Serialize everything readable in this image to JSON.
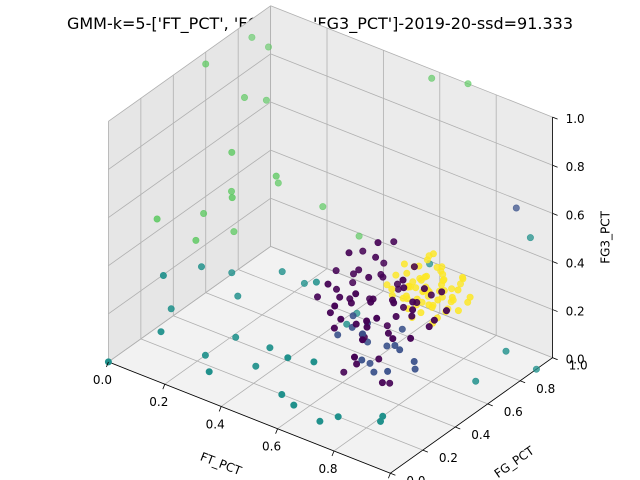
{
  "chart_data": {
    "type": "scatter",
    "projection": "3d",
    "title": "GMM-k=5-['FT_PCT', 'FG_PCT', 'FG3_PCT']-2019-20-ssd=91.333",
    "xlabel": "FT_PCT",
    "ylabel": "FG_PCT",
    "zlabel": "FG3_PCT",
    "xlim": [
      0,
      1
    ],
    "ylim": [
      0,
      1
    ],
    "zlim": [
      0,
      1
    ],
    "xticks": [
      "0.0",
      "0.2",
      "0.4",
      "0.6",
      "0.8",
      "1.0"
    ],
    "yticks": [
      "0.0",
      "0.2",
      "0.4",
      "0.6",
      "0.8",
      "1.0"
    ],
    "zticks": [
      "0.0",
      "0.2",
      "0.4",
      "0.6",
      "0.8",
      "1.0"
    ],
    "grid": true,
    "colors": {
      "cluster_0": "#440154",
      "cluster_1": "#3b528b",
      "cluster_2": "#21918c",
      "cluster_3": "#5ec962",
      "cluster_4": "#fde725"
    },
    "series": [
      {
        "color_key": "cluster_0",
        "points": [
          [
            0.62,
            0.42,
            0.33
          ],
          [
            0.68,
            0.45,
            0.36
          ],
          [
            0.72,
            0.5,
            0.35
          ],
          [
            0.58,
            0.48,
            0.3
          ],
          [
            0.65,
            0.55,
            0.4
          ],
          [
            0.75,
            0.47,
            0.31
          ],
          [
            0.7,
            0.4,
            0.38
          ],
          [
            0.66,
            0.38,
            0.28
          ],
          [
            0.6,
            0.5,
            0.42
          ],
          [
            0.78,
            0.52,
            0.36
          ],
          [
            0.74,
            0.44,
            0.25
          ],
          [
            0.55,
            0.45,
            0.34
          ],
          [
            0.8,
            0.48,
            0.33
          ],
          [
            0.64,
            0.58,
            0.37
          ],
          [
            0.71,
            0.36,
            0.3
          ],
          [
            0.69,
            0.52,
            0.22
          ],
          [
            0.57,
            0.52,
            0.38
          ],
          [
            0.77,
            0.42,
            0.4
          ],
          [
            0.63,
            0.47,
            0.18
          ],
          [
            0.73,
            0.55,
            0.3
          ],
          [
            0.59,
            0.4,
            0.35
          ],
          [
            0.67,
            0.44,
            0.45
          ],
          [
            0.82,
            0.45,
            0.38
          ],
          [
            0.61,
            0.55,
            0.28
          ],
          [
            0.76,
            0.5,
            0.42
          ],
          [
            0.5,
            0.42,
            0.3
          ],
          [
            0.68,
            0.6,
            0.35
          ],
          [
            0.72,
            0.34,
            0.34
          ],
          [
            0.65,
            0.4,
            0.1
          ],
          [
            0.7,
            0.3,
            0.2
          ],
          [
            0.85,
            0.5,
            0.3
          ],
          [
            0.56,
            0.38,
            0.4
          ],
          [
            0.62,
            0.62,
            0.4
          ],
          [
            0.79,
            0.38,
            0.28
          ],
          [
            0.66,
            0.5,
            0.5
          ],
          [
            0.74,
            0.6,
            0.45
          ],
          [
            0.6,
            0.35,
            0.25
          ],
          [
            0.52,
            0.5,
            0.38
          ],
          [
            0.88,
            0.48,
            0.35
          ],
          [
            0.7,
            0.45,
            0.12
          ],
          [
            0.64,
            0.32,
            0.32
          ],
          [
            0.76,
            0.58,
            0.32
          ],
          [
            0.58,
            0.56,
            0.46
          ],
          [
            0.81,
            0.54,
            0.42
          ],
          [
            0.67,
            0.36,
            0.42
          ],
          [
            0.73,
            0.42,
            0.05
          ],
          [
            0.69,
            0.56,
            0.55
          ],
          [
            0.62,
            0.5,
            0.15
          ],
          [
            0.78,
            0.46,
            0.48
          ],
          [
            0.55,
            0.55,
            0.32
          ],
          [
            0.9,
            0.52,
            0.38
          ],
          [
            0.6,
            0.44,
            0.52
          ],
          [
            0.75,
            0.35,
            0.36
          ],
          [
            0.66,
            0.64,
            0.3
          ],
          [
            0.71,
            0.5,
            0.0
          ],
          [
            0.63,
            0.3,
            0.38
          ],
          [
            0.83,
            0.42,
            0.28
          ],
          [
            0.57,
            0.46,
            0.0
          ],
          [
            0.8,
            0.6,
            0.36
          ],
          [
            0.68,
            0.48,
            0.58
          ],
          [
            0.74,
            0.28,
            0.3
          ],
          [
            0.58,
            0.36,
            0.3
          ],
          [
            0.86,
            0.56,
            0.42
          ]
        ]
      },
      {
        "color_key": "cluster_1",
        "points": [
          [
            0.6,
            0.46,
            0.2
          ],
          [
            0.7,
            0.5,
            0.15
          ],
          [
            0.66,
            0.42,
            0.22
          ],
          [
            0.74,
            0.48,
            0.18
          ],
          [
            0.62,
            0.52,
            0.12
          ],
          [
            0.78,
            0.44,
            0.2
          ],
          [
            0.68,
            0.38,
            0.14
          ],
          [
            0.56,
            0.44,
            0.16
          ],
          [
            0.72,
            0.56,
            0.2
          ],
          [
            0.64,
            0.5,
            0.05
          ],
          [
            0.8,
            0.5,
            0.1
          ],
          [
            0.66,
            0.45,
            0.25
          ],
          [
            0.76,
            0.4,
            0.12
          ],
          [
            0.9,
            0.95,
            0.6
          ],
          [
            0.7,
            0.42,
            0.08
          ],
          [
            0.58,
            0.5,
            0.22
          ],
          [
            0.82,
            0.46,
            0.16
          ]
        ]
      },
      {
        "color_key": "cluster_2",
        "points": [
          [
            0.0,
            0.0,
            0.0
          ],
          [
            0.05,
            0.3,
            0.1
          ],
          [
            0.1,
            0.4,
            0.25
          ],
          [
            0.15,
            0.5,
            0.2
          ],
          [
            0.08,
            0.2,
            0.3
          ],
          [
            0.2,
            0.45,
            0.15
          ],
          [
            0.3,
            0.55,
            0.25
          ],
          [
            0.25,
            0.35,
            0.05
          ],
          [
            0.35,
            0.6,
            0.2
          ],
          [
            0.45,
            0.5,
            0.3
          ],
          [
            0.5,
            0.2,
            0.0
          ],
          [
            0.4,
            0.3,
            0.1
          ],
          [
            0.6,
            0.1,
            0.05
          ],
          [
            0.7,
            0.2,
            0.0
          ],
          [
            0.8,
            0.3,
            0.0
          ],
          [
            0.85,
            0.2,
            0.05
          ],
          [
            0.9,
            0.7,
            0.0
          ],
          [
            0.95,
            0.8,
            0.1
          ],
          [
            1.0,
            0.9,
            0.0
          ],
          [
            0.75,
            0.0,
            0.1
          ],
          [
            0.55,
            0.15,
            0.2
          ],
          [
            0.3,
            0.1,
            0.05
          ],
          [
            0.2,
            0.25,
            0.0
          ],
          [
            0.1,
            0.15,
            0.1
          ],
          [
            0.45,
            0.75,
            0.05
          ],
          [
            0.65,
            0.85,
            0.3
          ],
          [
            0.95,
            0.95,
            0.5
          ],
          [
            0.35,
            0.3,
            0.0
          ],
          [
            0.5,
            0.6,
            0.1
          ],
          [
            0.7,
            0.05,
            0.3
          ]
        ]
      },
      {
        "color_key": "cluster_3",
        "points": [
          [
            0.05,
            0.9,
            0.9
          ],
          [
            0.02,
            0.85,
            0.95
          ],
          [
            0.0,
            0.6,
            0.95
          ],
          [
            0.08,
            0.7,
            0.8
          ],
          [
            0.1,
            0.8,
            0.75
          ],
          [
            0.15,
            0.5,
            0.7
          ],
          [
            0.12,
            0.55,
            0.5
          ],
          [
            0.2,
            0.7,
            0.5
          ],
          [
            0.05,
            0.5,
            0.4
          ],
          [
            0.1,
            0.6,
            0.3
          ],
          [
            0.08,
            0.4,
            0.35
          ],
          [
            0.25,
            0.6,
            0.6
          ],
          [
            0.3,
            0.8,
            0.4
          ],
          [
            0.4,
            0.85,
            0.3
          ],
          [
            0.6,
            0.95,
            1.0
          ],
          [
            0.7,
            1.0,
            1.0
          ],
          [
            0.0,
            0.3,
            0.45
          ],
          [
            0.18,
            0.45,
            0.55
          ]
        ]
      },
      {
        "color_key": "cluster_4",
        "points": [
          [
            0.7,
            0.62,
            0.3
          ],
          [
            0.74,
            0.66,
            0.32
          ],
          [
            0.78,
            0.64,
            0.28
          ],
          [
            0.72,
            0.7,
            0.35
          ],
          [
            0.68,
            0.66,
            0.26
          ],
          [
            0.76,
            0.72,
            0.3
          ],
          [
            0.8,
            0.68,
            0.34
          ],
          [
            0.66,
            0.6,
            0.32
          ],
          [
            0.73,
            0.58,
            0.28
          ],
          [
            0.77,
            0.6,
            0.36
          ],
          [
            0.82,
            0.7,
            0.3
          ],
          [
            0.7,
            0.74,
            0.28
          ],
          [
            0.64,
            0.66,
            0.34
          ],
          [
            0.75,
            0.76,
            0.32
          ],
          [
            0.79,
            0.74,
            0.26
          ],
          [
            0.71,
            0.68,
            0.4
          ],
          [
            0.84,
            0.66,
            0.34
          ],
          [
            0.69,
            0.7,
            0.22
          ],
          [
            0.76,
            0.64,
            0.4
          ],
          [
            0.81,
            0.62,
            0.26
          ],
          [
            0.67,
            0.72,
            0.36
          ],
          [
            0.73,
            0.78,
            0.34
          ],
          [
            0.78,
            0.7,
            0.42
          ],
          [
            0.72,
            0.62,
            0.22
          ],
          [
            0.86,
            0.72,
            0.3
          ],
          [
            0.65,
            0.62,
            0.28
          ],
          [
            0.74,
            0.68,
            0.44
          ],
          [
            0.8,
            0.78,
            0.32
          ],
          [
            0.69,
            0.64,
            0.38
          ],
          [
            0.77,
            0.66,
            0.2
          ],
          [
            0.83,
            0.74,
            0.38
          ],
          [
            0.7,
            0.76,
            0.4
          ],
          [
            0.75,
            0.6,
            0.32
          ],
          [
            0.79,
            0.68,
            0.36
          ],
          [
            0.68,
            0.68,
            0.3
          ],
          [
            0.72,
            0.72,
            0.26
          ],
          [
            0.76,
            0.74,
            0.36
          ],
          [
            0.74,
            0.64,
            0.24
          ],
          [
            0.81,
            0.66,
            0.4
          ],
          [
            0.71,
            0.66,
            0.32
          ],
          [
            0.78,
            0.62,
            0.3
          ],
          [
            0.66,
            0.7,
            0.28
          ],
          [
            0.85,
            0.68,
            0.28
          ],
          [
            0.73,
            0.7,
            0.3
          ],
          [
            0.77,
            0.72,
            0.28
          ],
          [
            0.7,
            0.66,
            0.34
          ],
          [
            0.8,
            0.64,
            0.32
          ],
          [
            0.74,
            0.74,
            0.38
          ],
          [
            0.62,
            0.64,
            0.3
          ],
          [
            0.88,
            0.7,
            0.34
          ],
          [
            0.72,
            0.6,
            0.36
          ],
          [
            0.76,
            0.68,
            0.26
          ],
          [
            0.82,
            0.76,
            0.36
          ],
          [
            0.69,
            0.72,
            0.32
          ],
          [
            0.75,
            0.7,
            0.46
          ],
          [
            0.79,
            0.72,
            0.24
          ],
          [
            0.67,
            0.66,
            0.4
          ],
          [
            0.84,
            0.62,
            0.3
          ],
          [
            0.73,
            0.66,
            0.36
          ],
          [
            0.78,
            0.76,
            0.3
          ],
          [
            0.71,
            0.7,
            0.24
          ],
          [
            0.86,
            0.66,
            0.38
          ],
          [
            0.7,
            0.6,
            0.3
          ],
          [
            0.77,
            0.64,
            0.34
          ]
        ]
      }
    ]
  }
}
